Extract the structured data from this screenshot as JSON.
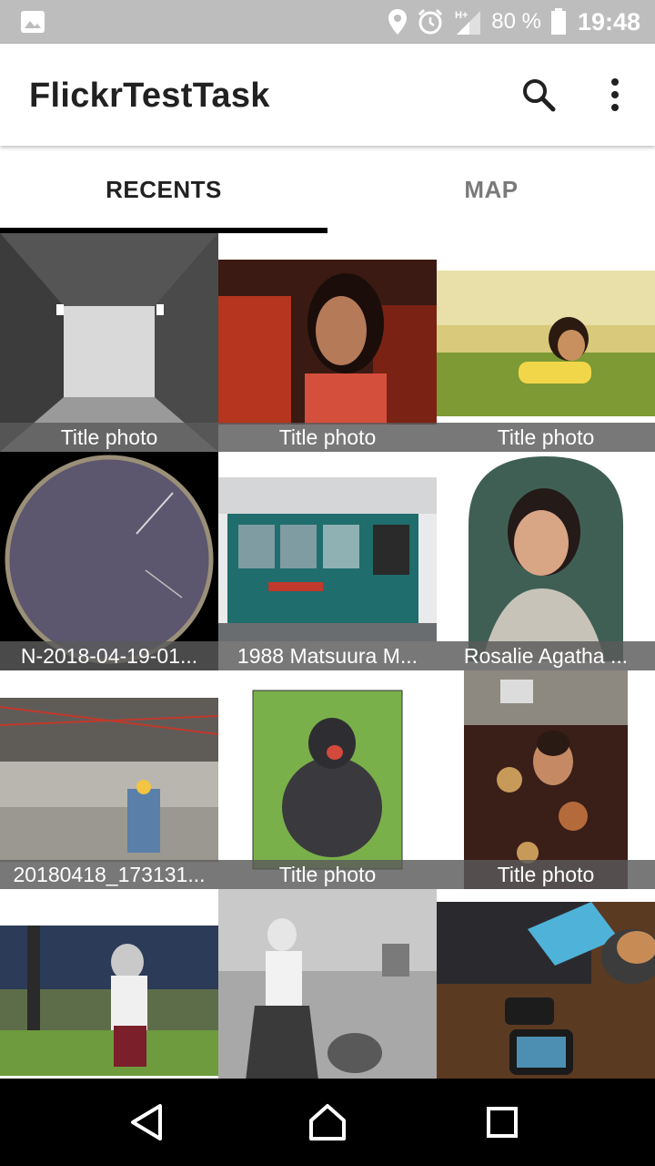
{
  "status_bar": {
    "battery": "80 %",
    "time": "19:48",
    "icons": [
      "image-icon",
      "location-icon",
      "alarm-icon",
      "signal-icon",
      "battery-icon"
    ]
  },
  "app_bar": {
    "title": "FlickrTestTask",
    "icons": [
      "search-icon",
      "more-vert-icon"
    ]
  },
  "tabs": [
    {
      "label": "RECENTS",
      "selected": true
    },
    {
      "label": "MAP",
      "selected": false
    }
  ],
  "photos": [
    {
      "caption": "Title photo"
    },
    {
      "caption": "Title photo"
    },
    {
      "caption": "Title photo"
    },
    {
      "caption": "N-2018-04-19-01..."
    },
    {
      "caption": "1988 Matsuura M..."
    },
    {
      "caption": "Rosalie Agatha ..."
    },
    {
      "caption": "20180418_173131..."
    },
    {
      "caption": "Title photo"
    },
    {
      "caption": "Title photo"
    },
    {
      "caption": ""
    },
    {
      "caption": ""
    },
    {
      "caption": ""
    }
  ],
  "nav_bar": {
    "icons": [
      "back-icon",
      "home-icon",
      "recents-icon"
    ]
  },
  "colors": {
    "status_bar": "#bdbdbd",
    "tab_indicator": "#000000",
    "caption_bg": "#5a5a5a"
  }
}
